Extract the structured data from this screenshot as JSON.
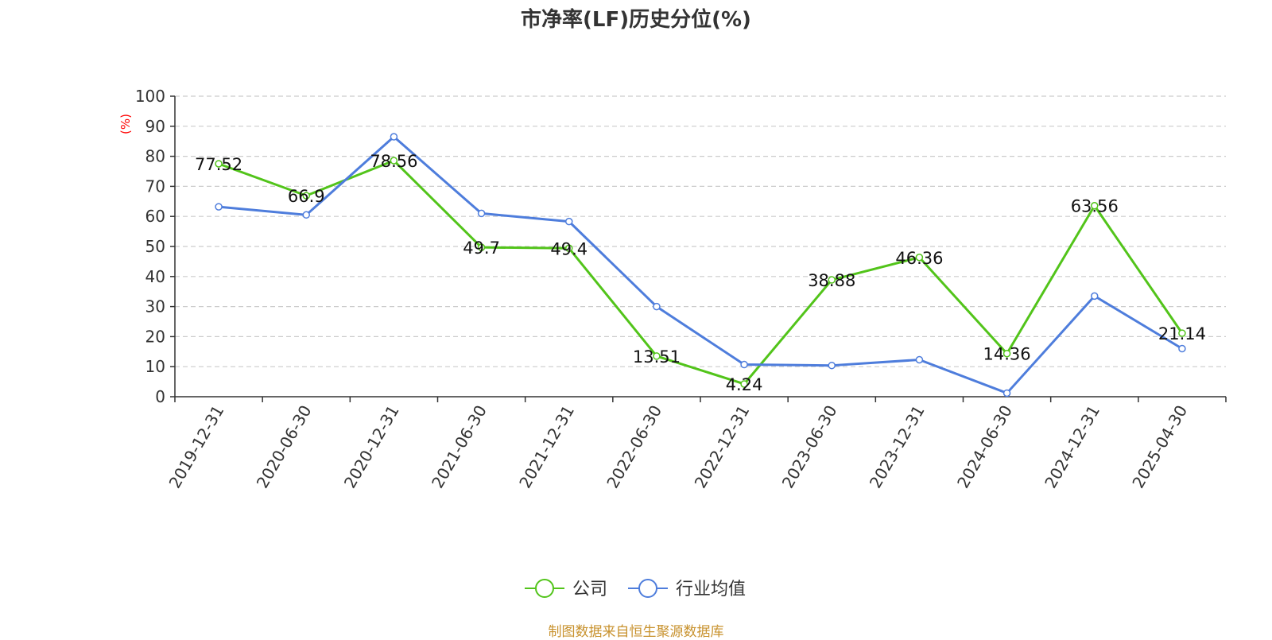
{
  "title": "市净率(LF)历史分位(%)",
  "footer": "制图数据来自恒生聚源数据库",
  "colors": {
    "company": "#52c41a",
    "industry": "#4e7ddc",
    "ylabel": "#ff0000",
    "footer": "#c8922e"
  },
  "chart_data": {
    "type": "line",
    "ylabel": "(%)",
    "ylim": [
      0,
      100
    ],
    "yticks": [
      0,
      10,
      20,
      30,
      40,
      50,
      60,
      70,
      80,
      90,
      100
    ],
    "grid": true,
    "legend_position": "bottom",
    "categories": [
      "2019-12-31",
      "2020-06-30",
      "2020-12-31",
      "2021-06-30",
      "2021-12-31",
      "2022-06-30",
      "2022-12-31",
      "2023-06-30",
      "2023-12-31",
      "2024-06-30",
      "2024-12-31",
      "2025-04-30"
    ],
    "series": [
      {
        "name": "公司",
        "values": [
          77.52,
          66.9,
          78.56,
          49.7,
          49.4,
          13.51,
          4.24,
          38.88,
          46.36,
          14.36,
          63.56,
          21.14
        ],
        "labels": [
          "77.52",
          "66.9",
          "78.56",
          "49.7",
          "49.4",
          "13.51",
          "4.24",
          "38.88",
          "46.36",
          "14.36",
          "63.56",
          "21.14"
        ]
      },
      {
        "name": "行业均值",
        "values": [
          63.2,
          60.5,
          86.5,
          61.0,
          58.3,
          30.0,
          10.7,
          10.4,
          12.3,
          1.2,
          33.5,
          16.0
        ]
      }
    ]
  }
}
